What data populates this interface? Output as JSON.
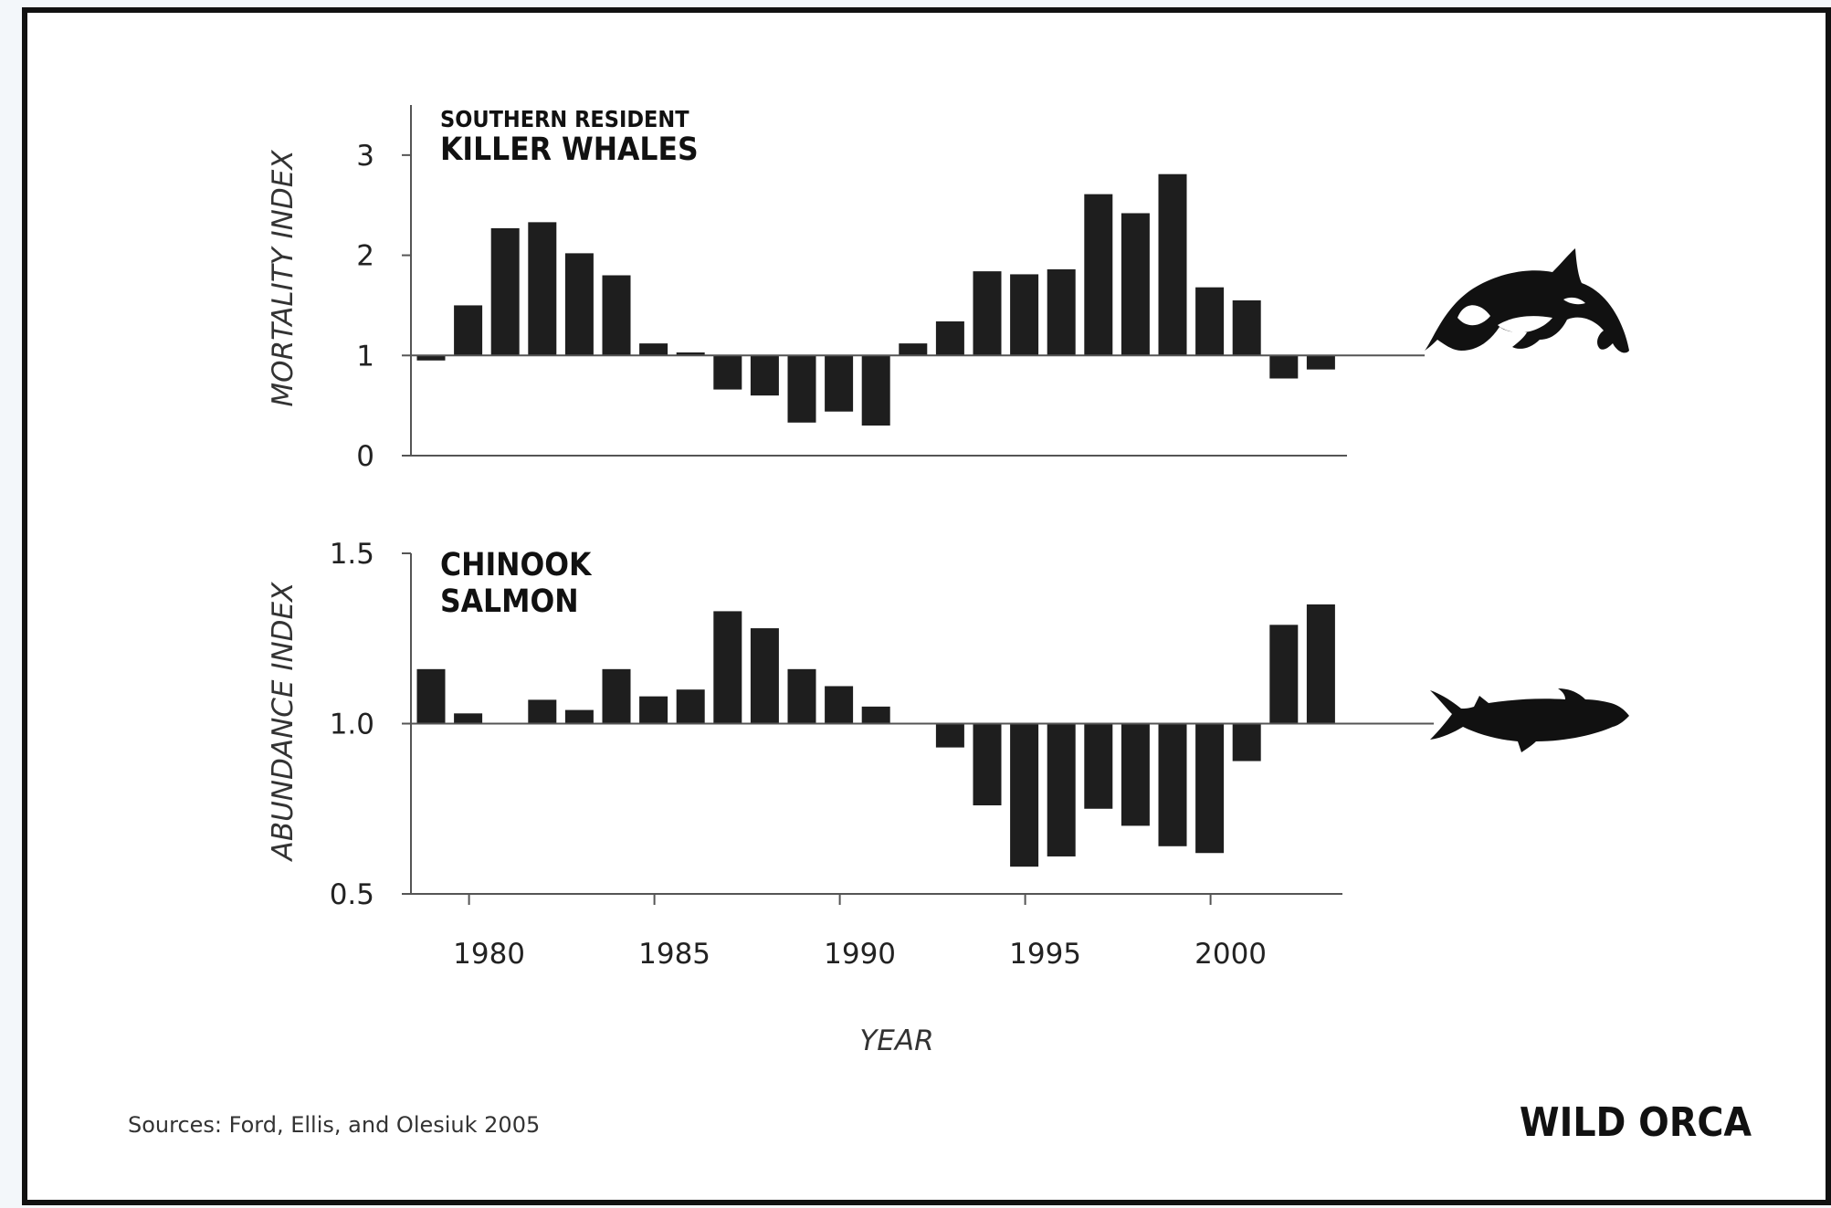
{
  "chart_data": [
    {
      "type": "bar",
      "title_line1": "SOUTHERN RESIDENT",
      "title_line2": "KILLER WHALES",
      "ylabel": "MORTALITY INDEX",
      "ylim": [
        0,
        3.5
      ],
      "yticks": [
        "0",
        "1",
        "2",
        "3"
      ],
      "ytick_values": [
        0,
        1,
        2,
        3
      ],
      "baseline": 1,
      "x": [
        1979,
        1980,
        1981,
        1982,
        1983,
        1984,
        1985,
        1986,
        1987,
        1988,
        1989,
        1990,
        1991,
        1992,
        1993,
        1994,
        1995,
        1996,
        1997,
        1998,
        1999,
        2000,
        2001,
        2002,
        2003
      ],
      "values": [
        0.95,
        1.5,
        2.27,
        2.33,
        2.02,
        1.8,
        1.12,
        1.03,
        0.66,
        0.6,
        0.33,
        0.44,
        0.3,
        1.12,
        1.34,
        1.84,
        1.81,
        1.86,
        2.61,
        2.42,
        2.81,
        1.68,
        1.55,
        0.77,
        0.86
      ]
    },
    {
      "type": "bar",
      "title_line1": "CHINOOK",
      "title_line2": "SALMON",
      "ylabel": "ABUNDANCE INDEX",
      "ylim": [
        0.5,
        1.5
      ],
      "yticks": [
        "0.5",
        "1.0",
        "1.5"
      ],
      "ytick_values": [
        0.5,
        1.0,
        1.5
      ],
      "baseline": 1.0,
      "x": [
        1979,
        1980,
        1981,
        1982,
        1983,
        1984,
        1985,
        1986,
        1987,
        1988,
        1989,
        1990,
        1991,
        1992,
        1993,
        1994,
        1995,
        1996,
        1997,
        1998,
        1999,
        2000,
        2001,
        2002,
        2003
      ],
      "values": [
        1.16,
        1.03,
        null,
        1.07,
        1.04,
        1.16,
        1.08,
        1.1,
        1.33,
        1.28,
        1.16,
        1.11,
        1.05,
        null,
        0.93,
        0.76,
        0.58,
        0.61,
        0.75,
        0.7,
        0.64,
        0.62,
        0.89,
        1.29,
        1.35
      ]
    }
  ],
  "xaxis": {
    "label": "YEAR",
    "ticks": [
      "1980",
      "1985",
      "1990",
      "1995",
      "2000"
    ],
    "tick_values": [
      1980,
      1985,
      1990,
      1995,
      2000
    ]
  },
  "footer": {
    "source": "Sources: Ford, Ellis, and Olesiuk 2005",
    "brand": "WILD ORCA"
  },
  "colors": {
    "bar": "#1e1e1e",
    "axis": "#555555",
    "background": "#ffffff"
  },
  "icons": [
    "orca-icon",
    "salmon-icon"
  ]
}
